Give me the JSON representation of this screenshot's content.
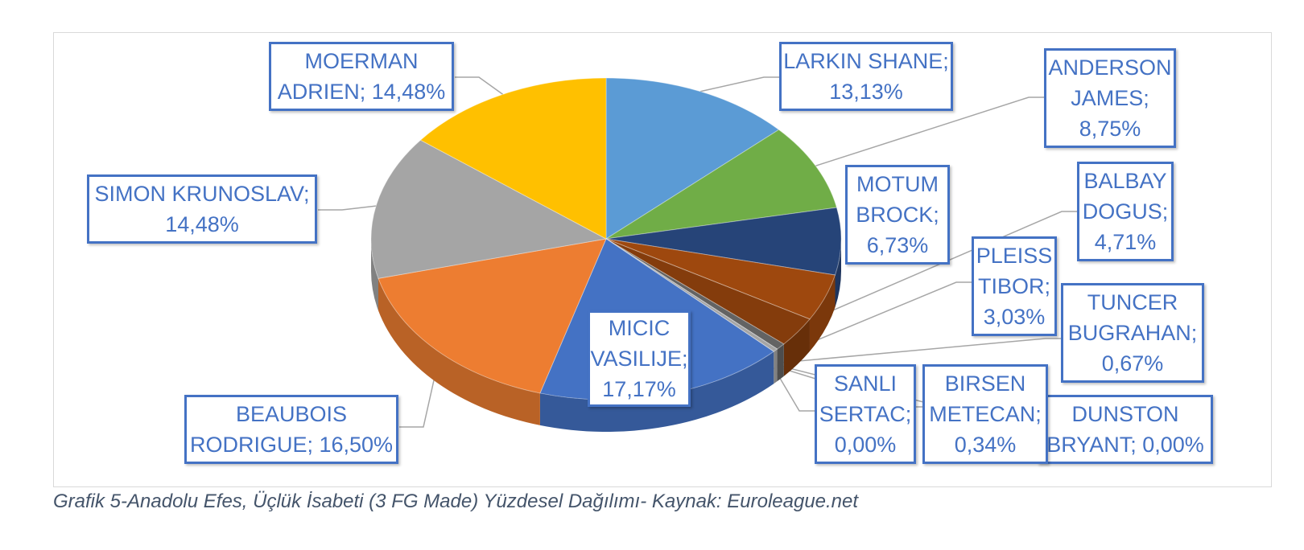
{
  "caption": "Grafik 5-Anadolu Efes, Üçlük İsabeti (3 FG Made) Yüzdesel Dağılımı- Kaynak: Euroleague.net",
  "chart_data": {
    "type": "pie",
    "title": "",
    "label_color": "#4472c4",
    "slices": [
      {
        "name": "LARKIN SHANE",
        "value": 13.13,
        "label": "13,13%",
        "color": "#5b9bd5"
      },
      {
        "name": "ANDERSON JAMES",
        "value": 8.75,
        "label": "8,75%",
        "color": "#70ad47"
      },
      {
        "name": "MOTUM BROCK",
        "value": 6.73,
        "label": "6,73%",
        "color": "#264478"
      },
      {
        "name": "BALBAY DOGUS",
        "value": 4.71,
        "label": "4,71%",
        "color": "#9e480e"
      },
      {
        "name": "PLEISS TIBOR",
        "value": 3.03,
        "label": "3,03%",
        "color": "#843c0c"
      },
      {
        "name": "TUNCER BUGRAHAN",
        "value": 0.67,
        "label": "0,67%",
        "color": "#636363"
      },
      {
        "name": "DUNSTON BRYANT",
        "value": 0.0,
        "label": "0,00%",
        "color": "#997300"
      },
      {
        "name": "BIRSEN METECAN",
        "value": 0.34,
        "label": "0,34%",
        "color": "#a5a5a5"
      },
      {
        "name": "SANLI SERTAC",
        "value": 0.0,
        "label": "0,00%",
        "color": "#ffc000"
      },
      {
        "name": "MICIC VASILIJE",
        "value": 17.17,
        "label": "17,17%",
        "color": "#4472c4"
      },
      {
        "name": "BEAUBOIS RODRIGUE",
        "value": 16.5,
        "label": "16,50%",
        "color": "#ed7d31"
      },
      {
        "name": "SIMON KRUNOSLAV",
        "value": 14.48,
        "label": "14,48%",
        "color": "#a5a5a5"
      },
      {
        "name": "MOERMAN ADRIEN",
        "value": 14.48,
        "label": "14,48%",
        "color": "#ffc000"
      }
    ],
    "data_labels": [
      {
        "lines": [
          "LARKIN SHANE;",
          "13,13%"
        ]
      },
      {
        "lines": [
          "ANDERSON",
          "JAMES;",
          "8,75%"
        ]
      },
      {
        "lines": [
          "MOTUM",
          "BROCK;",
          "6,73%"
        ]
      },
      {
        "lines": [
          "BALBAY",
          "DOGUS;",
          "4,71%"
        ]
      },
      {
        "lines": [
          "PLEISS",
          "TIBOR;",
          "3,03%"
        ]
      },
      {
        "lines": [
          "TUNCER",
          "BUGRAHAN;",
          "0,67%"
        ]
      },
      {
        "lines": [
          "DUNSTON",
          "BRYANT; 0,00%"
        ]
      },
      {
        "lines": [
          "BIRSEN",
          "METECAN;",
          "0,34%"
        ]
      },
      {
        "lines": [
          "SANLI",
          "SERTAC;",
          "0,00%"
        ]
      },
      {
        "lines": [
          "MICIC",
          "VASILIJE;",
          "17,17%"
        ]
      },
      {
        "lines": [
          "BEAUBOIS",
          "RODRIGUE; 16,50%"
        ]
      },
      {
        "lines": [
          "SIMON KRUNOSLAV;",
          "14,48%"
        ]
      },
      {
        "lines": [
          "MOERMAN",
          "ADRIEN; 14,48%"
        ]
      }
    ]
  }
}
